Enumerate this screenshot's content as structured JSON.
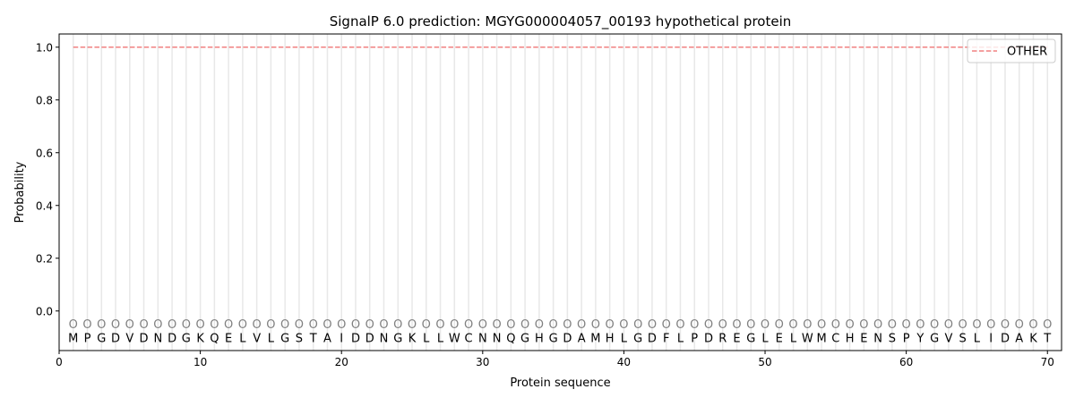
{
  "chart_data": {
    "type": "line",
    "title": "SignalP 6.0 prediction: MGYG000004057_00193 hypothetical protein",
    "xlabel": "Protein sequence",
    "ylabel": "Probability",
    "xlim": [
      0,
      71
    ],
    "ylim": [
      -0.15,
      1.05
    ],
    "xticks": [
      0,
      10,
      20,
      30,
      40,
      50,
      60,
      70
    ],
    "yticks": [
      0.0,
      0.2,
      0.4,
      0.6,
      0.8,
      1.0
    ],
    "sequence": [
      "M",
      "P",
      "G",
      "D",
      "V",
      "D",
      "N",
      "D",
      "G",
      "K",
      "Q",
      "E",
      "L",
      "V",
      "L",
      "G",
      "S",
      "T",
      "A",
      "I",
      "D",
      "D",
      "N",
      "G",
      "K",
      "L",
      "L",
      "W",
      "C",
      "N",
      "N",
      "Q",
      "G",
      "H",
      "G",
      "D",
      "A",
      "M",
      "H",
      "L",
      "G",
      "D",
      "F",
      "L",
      "P",
      "D",
      "R",
      "E",
      "G",
      "L",
      "E",
      "L",
      "W",
      "M",
      "C",
      "H",
      "E",
      "N",
      "S",
      "P",
      "Y",
      "G",
      "V",
      "S",
      "L",
      "I",
      "D",
      "A",
      "K",
      "T"
    ],
    "region_label": "O",
    "series": [
      {
        "name": "OTHER",
        "color": "#f08080",
        "style": "dashed",
        "x_range": [
          1,
          70
        ],
        "value": 1.0
      }
    ],
    "legend_placement": "top-right",
    "grid": "vertical lines at each residue"
  }
}
